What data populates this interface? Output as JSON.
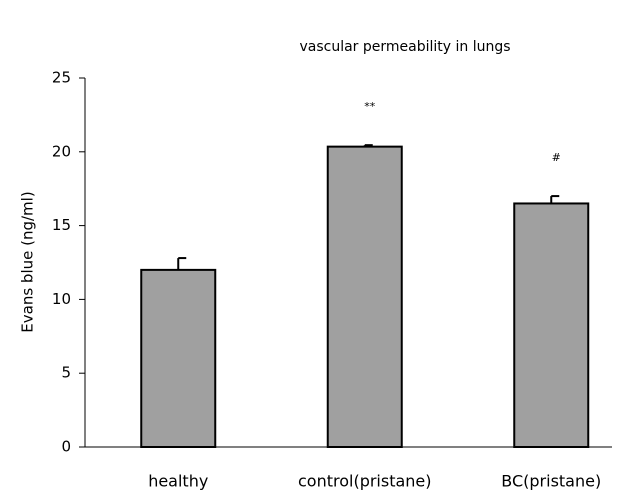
{
  "chart_data": {
    "type": "bar",
    "title": "vascular permeability in lungs",
    "y_label": "Evans blue (ng/ml)",
    "categories": [
      "healthy",
      "control(pristane)",
      "BC(pristane)"
    ],
    "values": [
      12.0,
      20.35,
      16.5
    ],
    "errors": [
      0.8,
      0.1,
      0.5
    ],
    "annotations": [
      null,
      "**",
      "#"
    ],
    "color": "#a0a0a0",
    "ylim": [
      0,
      25
    ],
    "yticks": [
      0,
      5,
      10,
      15,
      20,
      25
    ],
    "grid": false
  }
}
